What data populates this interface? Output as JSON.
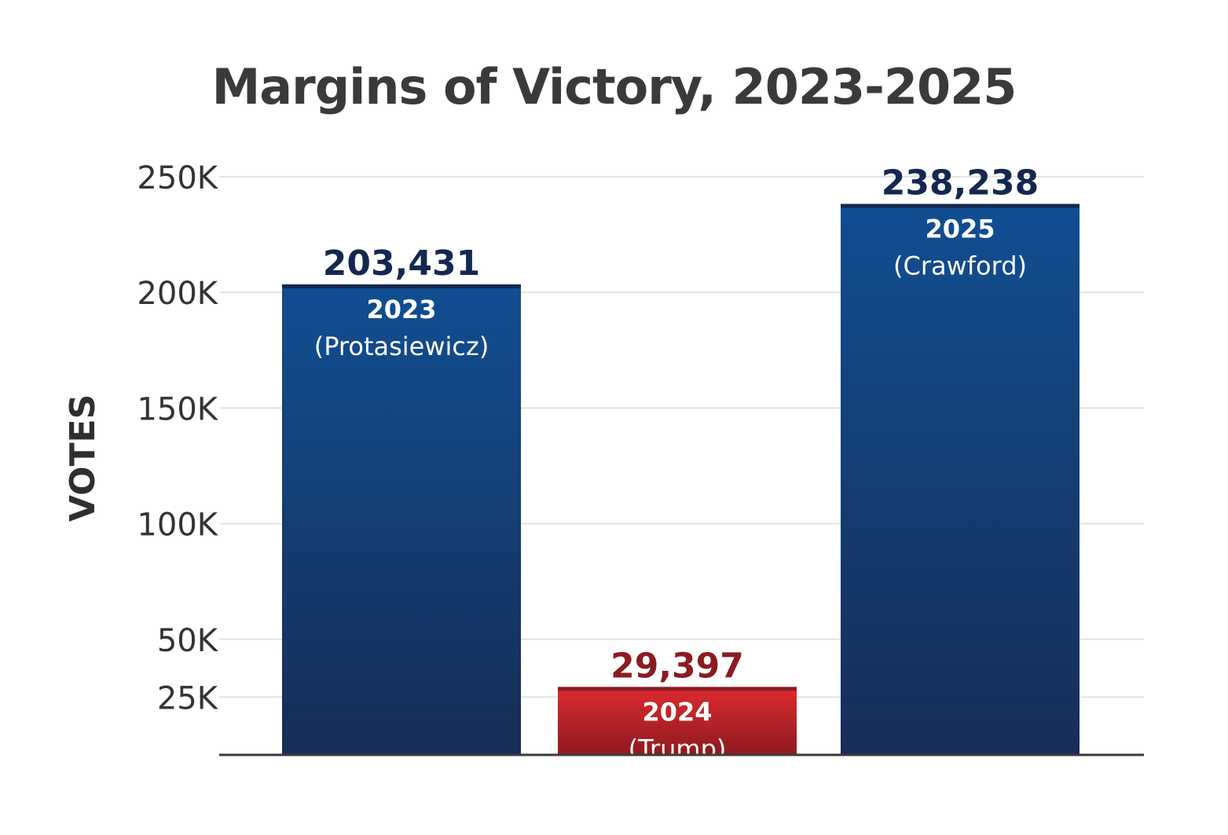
{
  "chart_data": {
    "type": "bar",
    "title": "Margins of Victory, 2023-2025",
    "ylabel": "VOTES",
    "xlabel": "",
    "ylim": [
      0,
      250000
    ],
    "yticks": [
      {
        "value": 25000,
        "label": "25K"
      },
      {
        "value": 50000,
        "label": "50K"
      },
      {
        "value": 100000,
        "label": "100K"
      },
      {
        "value": 150000,
        "label": "150K"
      },
      {
        "value": 200000,
        "label": "200K"
      },
      {
        "value": 250000,
        "label": "250K"
      }
    ],
    "grid": true,
    "bars": [
      {
        "year": "2023",
        "name": "(Protasiewicz)",
        "value": 203431,
        "value_label": "203,431",
        "color_top": "#114e92",
        "color_bottom": "#172d57",
        "label_color": "#14284f"
      },
      {
        "year": "2024",
        "name": "(Trump)",
        "value": 29397,
        "value_label": "29,397",
        "color_top": "#dd2a2f",
        "color_bottom": "#8e1a20",
        "label_color": "#8a1b22"
      },
      {
        "year": "2025",
        "name": "(Crawford)",
        "value": 238238,
        "value_label": "238,238",
        "color_top": "#114e92",
        "color_bottom": "#172d57",
        "label_color": "#14284f"
      }
    ]
  }
}
